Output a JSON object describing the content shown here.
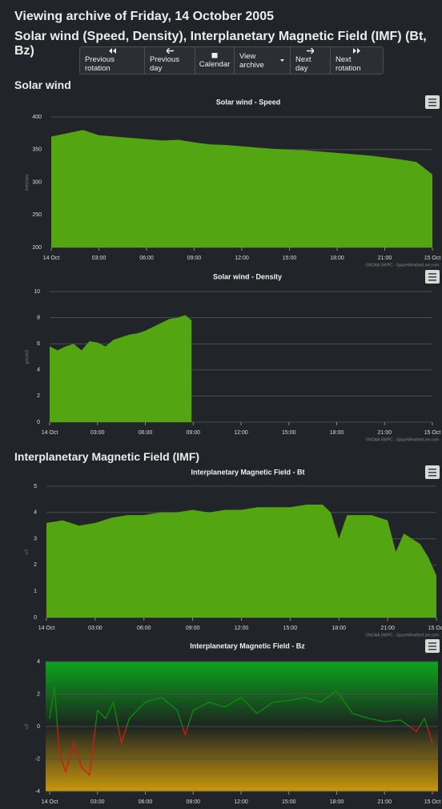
{
  "header": {
    "title": "Viewing archive of Friday, 14 October 2005",
    "subtitle": "Solar wind (Speed, Density), Interplanetary Magnetic Field (IMF) (Bt, Bz)"
  },
  "nav": [
    "Previous rotation",
    "Previous day",
    "Calendar",
    "View archive",
    "Next day",
    "Next rotation"
  ],
  "sections": [
    "Solar wind",
    "Interplanetary Magnetic Field (IMF)"
  ],
  "chart_data": [
    {
      "type": "area",
      "title": "Solar wind - Speed",
      "y_label": "km/sec",
      "credit": "©NOAA SWPC - SpaceWeatherLive.com",
      "color": "#53a612",
      "x": [
        0,
        1,
        2,
        3,
        4,
        5,
        6,
        7,
        8,
        9,
        10,
        11,
        12,
        13,
        14,
        15,
        16,
        17,
        18,
        19,
        20,
        21,
        22,
        23,
        24
      ],
      "values": [
        370,
        375,
        380,
        372,
        370,
        368,
        366,
        364,
        365,
        361,
        358,
        357,
        355,
        353,
        351,
        350,
        349,
        347,
        345,
        343,
        341,
        338,
        335,
        331,
        312
      ],
      "xlim": [
        0,
        24
      ],
      "xticks": [
        {
          "value": 0,
          "label": "14 Oct"
        },
        {
          "value": 3,
          "label": "03:00"
        },
        {
          "value": 6,
          "label": "06:00"
        },
        {
          "value": 9,
          "label": "09:00"
        },
        {
          "value": 12,
          "label": "12:00"
        },
        {
          "value": 15,
          "label": "15:00"
        },
        {
          "value": 18,
          "label": "18:00"
        },
        {
          "value": 21,
          "label": "21:00"
        },
        {
          "value": 24,
          "label": "15 Oct"
        }
      ],
      "ylim": [
        200,
        400
      ],
      "yticks": [
        200,
        250,
        300,
        350,
        400
      ],
      "grid": true
    },
    {
      "type": "area",
      "title": "Solar wind - Density",
      "y_label": "p/cm3",
      "credit": "©NOAA SWPC - SpaceWeatherLive.com",
      "color": "#53a612",
      "x": [
        0,
        0.5,
        1,
        1.5,
        2,
        2.5,
        3,
        3.5,
        4,
        4.5,
        5,
        5.5,
        6,
        6.5,
        7,
        7.5,
        8,
        8.5,
        8.9,
        9.5,
        24
      ],
      "values": [
        5.8,
        5.5,
        5.8,
        6.0,
        5.5,
        6.2,
        6.1,
        5.8,
        6.3,
        6.5,
        6.7,
        6.8,
        7.0,
        7.3,
        7.6,
        7.9,
        8.0,
        8.2,
        7.8,
        null,
        null
      ],
      "xlim": [
        0,
        24
      ],
      "xticks": [
        {
          "value": 0,
          "label": "14 Oct"
        },
        {
          "value": 3,
          "label": "03:00"
        },
        {
          "value": 6,
          "label": "06:00"
        },
        {
          "value": 9,
          "label": "09:00"
        },
        {
          "value": 12,
          "label": "12:00"
        },
        {
          "value": 15,
          "label": "15:00"
        },
        {
          "value": 18,
          "label": "18:00"
        },
        {
          "value": 21,
          "label": "21:00"
        },
        {
          "value": 24,
          "label": "15 Oct"
        }
      ],
      "ylim": [
        0,
        10
      ],
      "yticks": [
        0,
        2,
        4,
        6,
        8,
        10
      ],
      "grid": true
    },
    {
      "type": "area",
      "title": "Interplanetary Magnetic Field - Bt",
      "y_label": "nT",
      "credit": "©NOAA SWPC - SpaceWeatherLive.com",
      "color": "#53a612",
      "x": [
        0,
        1,
        2,
        3,
        4,
        5,
        6,
        7,
        8,
        9,
        10,
        11,
        12,
        13,
        14,
        15,
        16,
        17,
        17.5,
        18,
        18.5,
        19,
        20,
        21,
        21.5,
        22,
        23,
        23.5,
        24
      ],
      "values": [
        3.6,
        3.7,
        3.5,
        3.6,
        3.8,
        3.9,
        3.9,
        4.0,
        4.0,
        4.1,
        4.0,
        4.1,
        4.1,
        4.2,
        4.2,
        4.2,
        4.3,
        4.3,
        4.0,
        3.0,
        3.9,
        3.9,
        3.9,
        3.7,
        2.5,
        3.2,
        2.8,
        2.3,
        1.6
      ],
      "xlim": [
        0,
        24
      ],
      "xticks": [
        {
          "value": 0,
          "label": "14 Oct"
        },
        {
          "value": 3,
          "label": "03:00"
        },
        {
          "value": 6,
          "label": "06:00"
        },
        {
          "value": 9,
          "label": "09:00"
        },
        {
          "value": 12,
          "label": "12:00"
        },
        {
          "value": 15,
          "label": "15:00"
        },
        {
          "value": 18,
          "label": "18:00"
        },
        {
          "value": 21,
          "label": "21:00"
        },
        {
          "value": 24,
          "label": "15 Oct"
        }
      ],
      "ylim": [
        0,
        5
      ],
      "yticks": [
        0,
        1,
        2,
        3,
        4,
        5
      ],
      "grid": true
    },
    {
      "type": "line",
      "title": "Interplanetary Magnetic Field - Bz",
      "y_label": "nT",
      "color": "#0a8f0a",
      "negative_color": "#d41a10",
      "x": [
        0,
        0.3,
        0.6,
        1,
        1.5,
        2,
        2.5,
        3,
        3.5,
        4,
        4.5,
        5,
        6,
        7,
        8,
        8.5,
        9,
        10,
        11,
        12,
        13,
        14,
        15,
        16,
        17,
        18,
        19,
        20,
        21,
        22,
        23,
        23.5,
        24
      ],
      "values": [
        0.5,
        2.5,
        -1.5,
        -2.8,
        -1.0,
        -2.5,
        -3.0,
        1.0,
        0.5,
        1.5,
        -1.0,
        0.5,
        1.5,
        1.8,
        1.0,
        -0.5,
        1.0,
        1.5,
        1.2,
        1.8,
        0.8,
        1.5,
        1.6,
        1.8,
        1.5,
        2.2,
        0.8,
        0.5,
        0.3,
        0.4,
        -0.3,
        0.5,
        -1.0
      ],
      "xlim": [
        0,
        24
      ],
      "xticks": [
        {
          "value": 0,
          "label": "14 Oct"
        },
        {
          "value": 3,
          "label": "03:00"
        },
        {
          "value": 6,
          "label": "06:00"
        },
        {
          "value": 9,
          "label": "09:00"
        },
        {
          "value": 12,
          "label": "12:00"
        },
        {
          "value": 15,
          "label": "15:00"
        },
        {
          "value": 18,
          "label": "18:00"
        },
        {
          "value": 21,
          "label": "21:00"
        },
        {
          "value": 24,
          "label": "15 Oct"
        }
      ],
      "ylim": [
        -4,
        4
      ],
      "yticks": [
        -4,
        -2,
        0,
        2,
        4
      ],
      "grid": true
    }
  ]
}
